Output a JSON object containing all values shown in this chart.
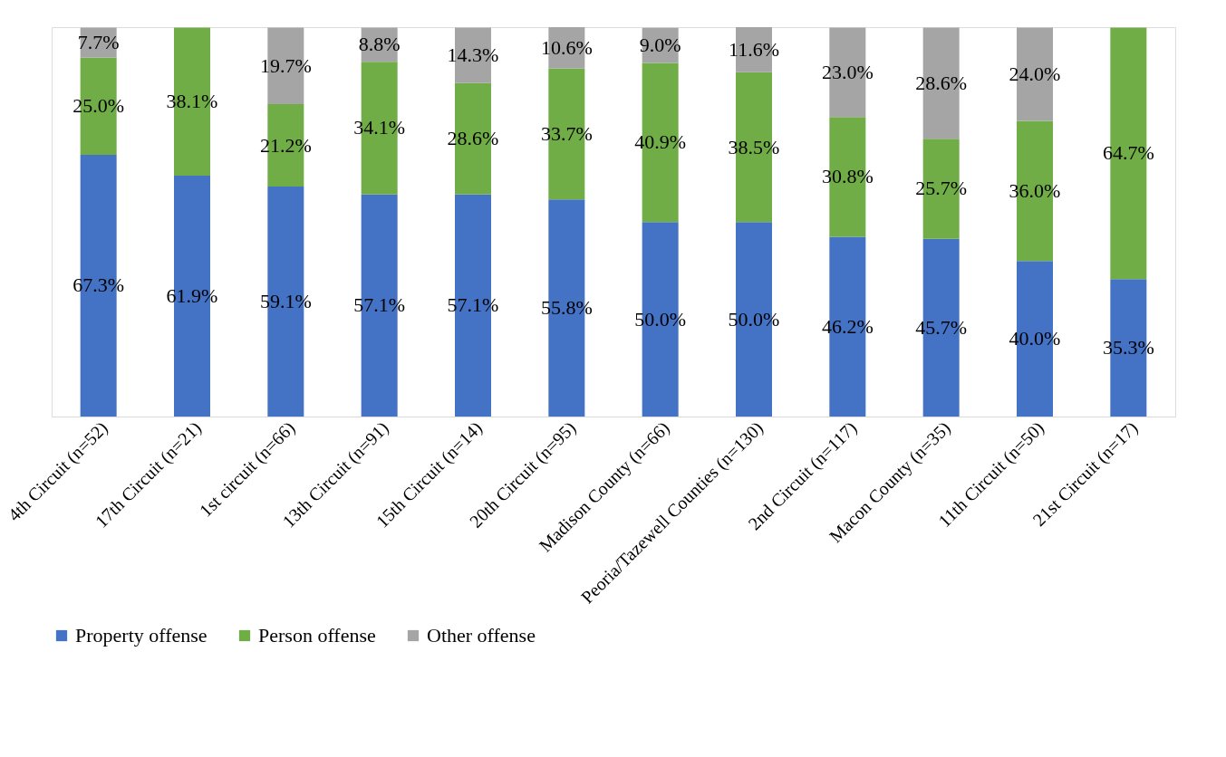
{
  "chart_data": {
    "type": "bar",
    "stacked": true,
    "legend": "bottom",
    "grid": false,
    "tick_labels": "x",
    "categories": [
      "4th Circuit (n=52)",
      "17th Circuit (n=21)",
      "1st circuit (n=66)",
      "13th Circuit (n=91)",
      "15th Circuit (n=14)",
      "20th Circuit (n=95)",
      "Madison County (n=66)",
      "Peoria/Tazewell Counties (n=130)",
      "2nd Circuit (n=117)",
      "Macon County (n=35)",
      "11th Circuit (n=50)",
      "21st Circuit (n=17)"
    ],
    "series": [
      {
        "name": "Property offense",
        "color": "#4472c4",
        "values": [
          67.3,
          61.9,
          59.1,
          57.1,
          57.1,
          55.8,
          50.0,
          50.0,
          46.2,
          45.7,
          40.0,
          35.3
        ],
        "value_labels": [
          "67.3%",
          "61.9%",
          "59.1%",
          "57.1%",
          "57.1%",
          "55.8%",
          "50.0%",
          "50.0%",
          "46.2%",
          "45.7%",
          "40.0%",
          "35.3%"
        ]
      },
      {
        "name": "Person offense",
        "color": "#70ad47",
        "values": [
          25.0,
          38.1,
          21.2,
          34.1,
          28.6,
          33.7,
          40.9,
          38.5,
          30.8,
          25.7,
          36.0,
          64.7
        ],
        "value_labels": [
          "25.0%",
          "38.1%",
          "21.2%",
          "34.1%",
          "28.6%",
          "33.7%",
          "40.9%",
          "38.5%",
          "30.8%",
          "25.7%",
          "36.0%",
          "64.7%"
        ]
      },
      {
        "name": "Other offense",
        "color": "#a5a5a5",
        "values": [
          7.7,
          null,
          19.7,
          8.8,
          14.3,
          10.6,
          9.0,
          11.6,
          23.0,
          28.6,
          24.0,
          null
        ],
        "value_labels": [
          "7.7%",
          null,
          "19.7%",
          "8.8%",
          "14.3%",
          "10.6%",
          "9.0%",
          "11.6%",
          "23.0%",
          "28.6%",
          "24.0%",
          null
        ]
      }
    ]
  }
}
